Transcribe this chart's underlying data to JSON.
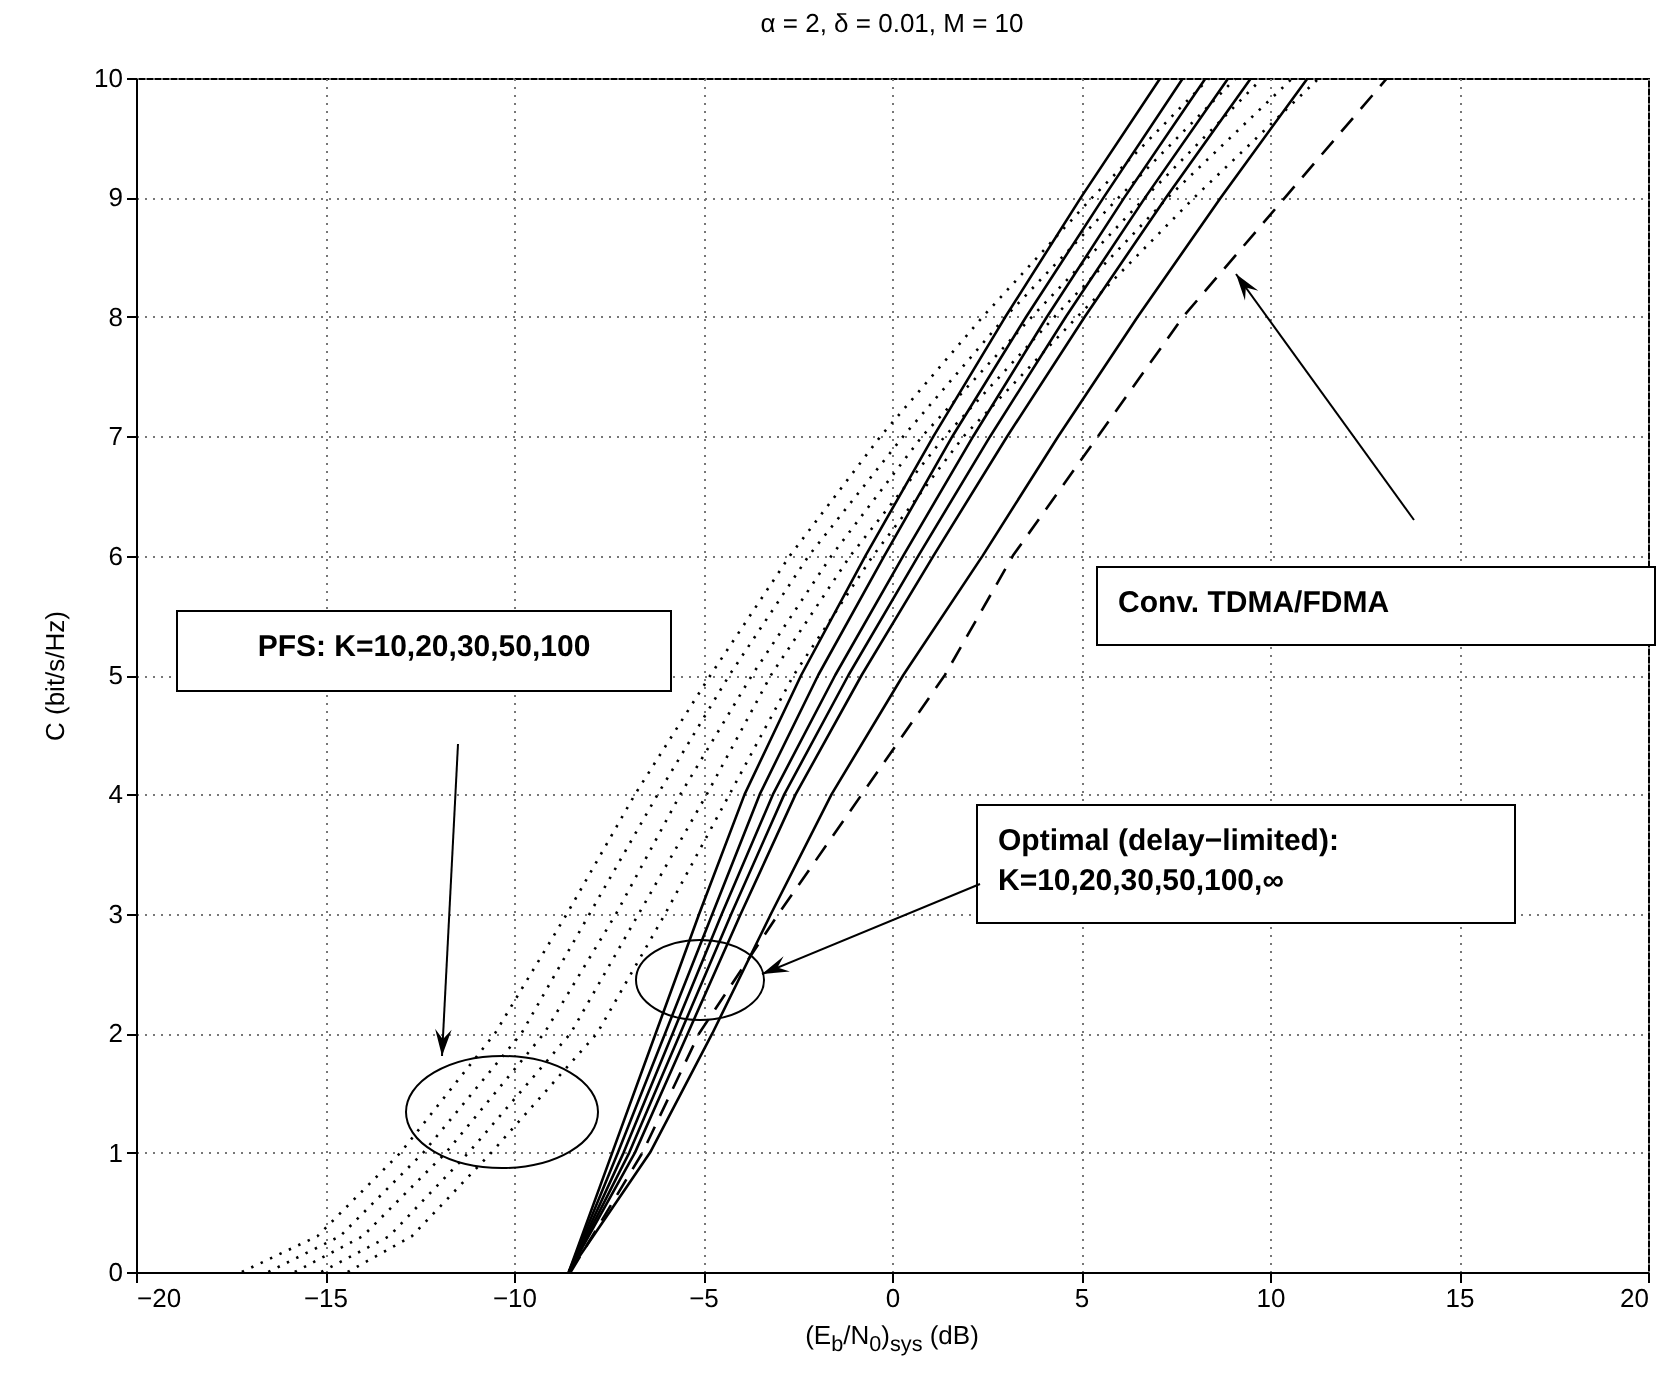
{
  "chart_data": {
    "type": "line",
    "title": "α = 2, δ = 0.01, M = 10",
    "xlabel": "(E$_{b}$/N$_{0}$)$_{sys}$ (dB)",
    "ylabel": "C (bit/s/Hz)",
    "annotations": [
      "PFS: K=10,20,30,50,100",
      "Conv. TDMA/FDMA",
      "Optimal (delay−limited): K=10,20,30,50,100,∞"
    ],
    "xlim": [
      -20,
      20
    ],
    "ylim": [
      0,
      10
    ],
    "xticks": [
      -20,
      -15,
      -10,
      -5,
      0,
      5,
      10,
      15,
      20
    ],
    "yticks": [
      0,
      1,
      2,
      3,
      4,
      5,
      6,
      7,
      8,
      9,
      10
    ],
    "grid": true,
    "series": [
      {
        "color": "#000000",
        "line_style": "solid",
        "x": [
          -8.55,
          -7.4,
          -6.25,
          -5.1,
          -3.9,
          -2.4,
          -0.7,
          1.1,
          3.0,
          5.0,
          7.1
        ],
        "values": [
          0,
          1,
          2,
          3,
          4,
          5,
          6,
          7,
          8,
          9,
          10
        ]
      },
      {
        "color": "#000000",
        "line_style": "solid",
        "x": [
          -8.55,
          -7.25,
          -6.0,
          -4.75,
          -3.5,
          -1.95,
          -0.2,
          1.6,
          3.55,
          5.6,
          7.7
        ],
        "values": [
          0,
          1,
          2,
          3,
          4,
          5,
          6,
          7,
          8,
          9,
          10
        ]
      },
      {
        "color": "#000000",
        "line_style": "solid",
        "x": [
          -8.55,
          -7.1,
          -5.8,
          -4.5,
          -3.15,
          -1.5,
          0.3,
          2.15,
          4.1,
          6.15,
          8.3
        ],
        "values": [
          0,
          1,
          2,
          3,
          4,
          5,
          6,
          7,
          8,
          9,
          10
        ]
      },
      {
        "color": "#000000",
        "line_style": "solid",
        "x": [
          -8.55,
          -6.95,
          -5.6,
          -4.25,
          -2.85,
          -1.15,
          0.7,
          2.6,
          4.6,
          6.7,
          8.9
        ],
        "values": [
          0,
          1,
          2,
          3,
          4,
          5,
          6,
          7,
          8,
          9,
          10
        ]
      },
      {
        "color": "#000000",
        "line_style": "solid",
        "x": [
          -8.55,
          -6.8,
          -5.4,
          -4.0,
          -2.55,
          -0.8,
          1.1,
          3.05,
          5.1,
          7.25,
          9.5
        ],
        "values": [
          0,
          1,
          2,
          3,
          4,
          5,
          6,
          7,
          8,
          9,
          10
        ]
      },
      {
        "color": "#000000",
        "line_style": "solid",
        "x": [
          -8.55,
          -6.4,
          -4.75,
          -3.2,
          -1.6,
          0.3,
          2.4,
          4.4,
          6.5,
          8.7,
          11.0
        ],
        "values": [
          0,
          1,
          2,
          3,
          4,
          5,
          6,
          7,
          8,
          9,
          10
        ]
      },
      {
        "color": "#000000",
        "line_style": "dashed",
        "x": [
          -8.5,
          -6.6,
          -5.1,
          -3.0,
          -0.8,
          1.4,
          3.2,
          5.45,
          7.7,
          10.4,
          13.1
        ],
        "values": [
          0,
          1,
          2,
          3,
          4,
          5,
          6,
          7,
          8,
          9,
          10
        ]
      },
      {
        "color": "#000000",
        "line_style": "dotted",
        "x": [
          -17.2,
          -15.2,
          -13.0,
          -10.5,
          -8.6,
          -6.8,
          -4.8,
          -2.7,
          -0.3,
          2.4,
          5.3,
          8.4
        ],
        "values": [
          0,
          0.3,
          1,
          2,
          3,
          4,
          5,
          6,
          7,
          8,
          9,
          10
        ]
      },
      {
        "color": "#000000",
        "line_style": "dotted",
        "x": [
          -16.5,
          -14.6,
          -12.4,
          -9.8,
          -8.0,
          -6.2,
          -4.3,
          -2.2,
          0.3,
          3.0,
          6.0,
          9.1
        ],
        "values": [
          0,
          0.3,
          1,
          2,
          3,
          4,
          5,
          6,
          7,
          8,
          9,
          10
        ]
      },
      {
        "color": "#000000",
        "line_style": "dotted",
        "x": [
          -15.8,
          -14.0,
          -11.8,
          -9.2,
          -7.3,
          -5.6,
          -3.7,
          -1.6,
          0.8,
          3.7,
          6.7,
          9.8
        ],
        "values": [
          0,
          0.3,
          1,
          2,
          3,
          4,
          5,
          6,
          7,
          8,
          9,
          10
        ]
      },
      {
        "color": "#000000",
        "line_style": "dotted",
        "x": [
          -15.1,
          -13.3,
          -11.2,
          -8.5,
          -6.7,
          -4.9,
          -3.2,
          -1.1,
          1.4,
          4.3,
          7.3,
          10.6
        ],
        "values": [
          0,
          0.3,
          1,
          2,
          3,
          4,
          5,
          6,
          7,
          8,
          9,
          10
        ]
      },
      {
        "color": "#000000",
        "line_style": "dotted",
        "x": [
          -14.4,
          -12.7,
          -10.6,
          -7.8,
          -6.0,
          -4.3,
          -2.6,
          -0.5,
          1.9,
          4.9,
          8.0,
          11.3
        ],
        "values": [
          0,
          0.3,
          1,
          2,
          3,
          4,
          5,
          6,
          7,
          8,
          9,
          10
        ]
      }
    ]
  }
}
